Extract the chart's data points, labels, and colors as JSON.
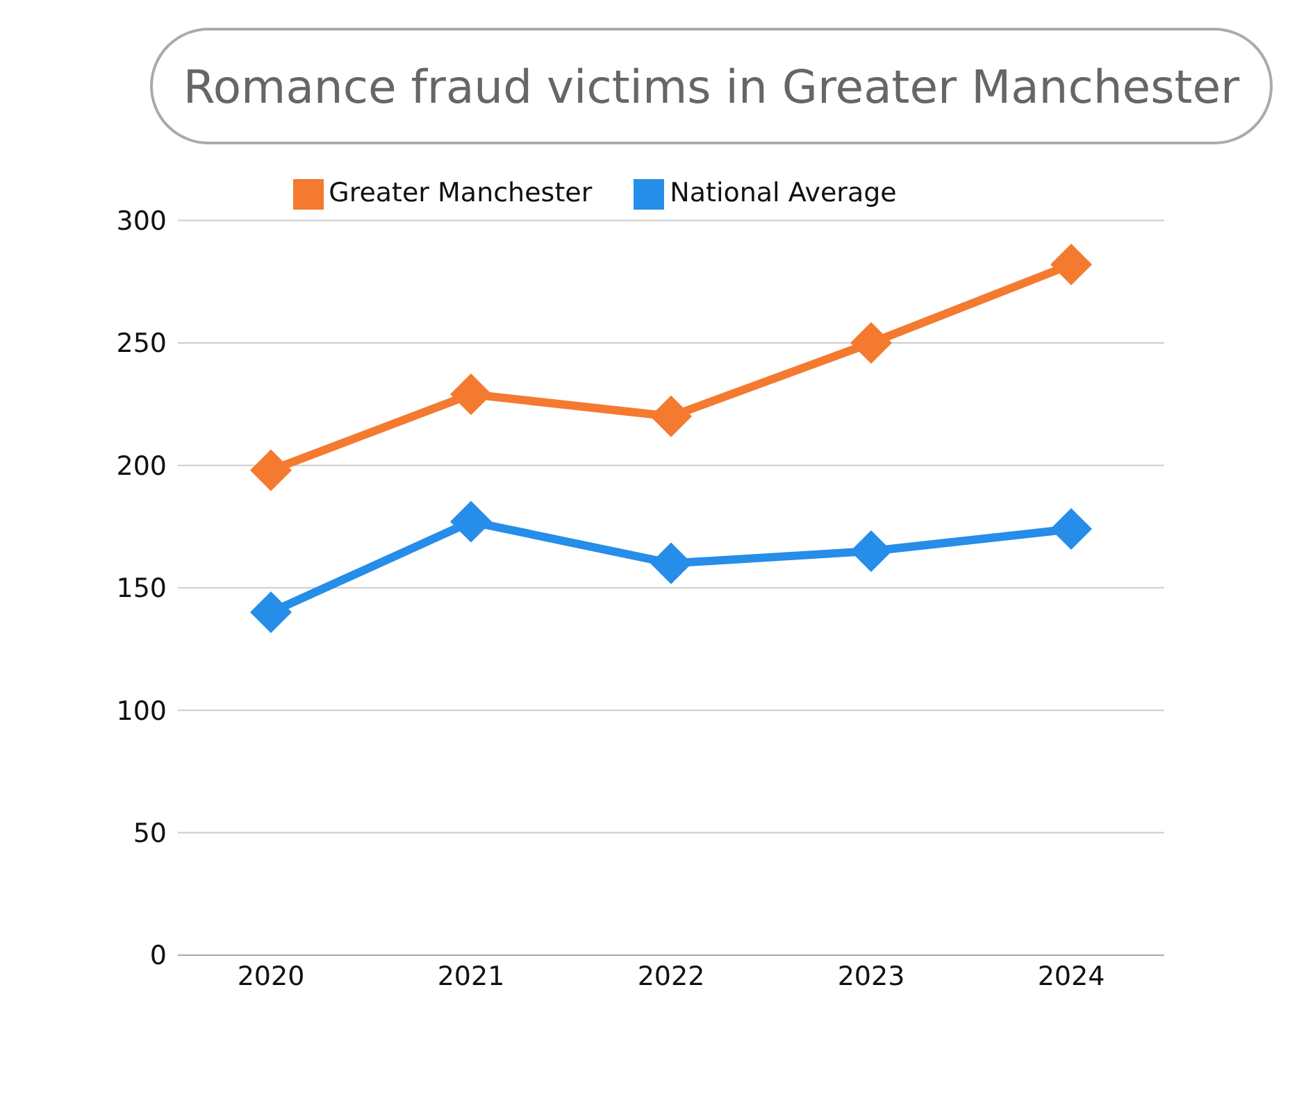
{
  "chart_data": {
    "type": "line",
    "title": "Romance fraud victims in Greater Manchester",
    "categories": [
      "2020",
      "2021",
      "2022",
      "2023",
      "2024"
    ],
    "series": [
      {
        "name": "Greater Manchester",
        "color": "#f47a30",
        "values": [
          198,
          229,
          220,
          250,
          282
        ]
      },
      {
        "name": "National Average",
        "color": "#268de8",
        "values": [
          140,
          177,
          160,
          165,
          174
        ]
      }
    ],
    "ylim": [
      0,
      300
    ],
    "yticks": [
      0,
      50,
      100,
      150,
      200,
      250,
      300
    ],
    "grid": "y",
    "legend": "top",
    "marker": "diamond",
    "line_style": "solid"
  }
}
